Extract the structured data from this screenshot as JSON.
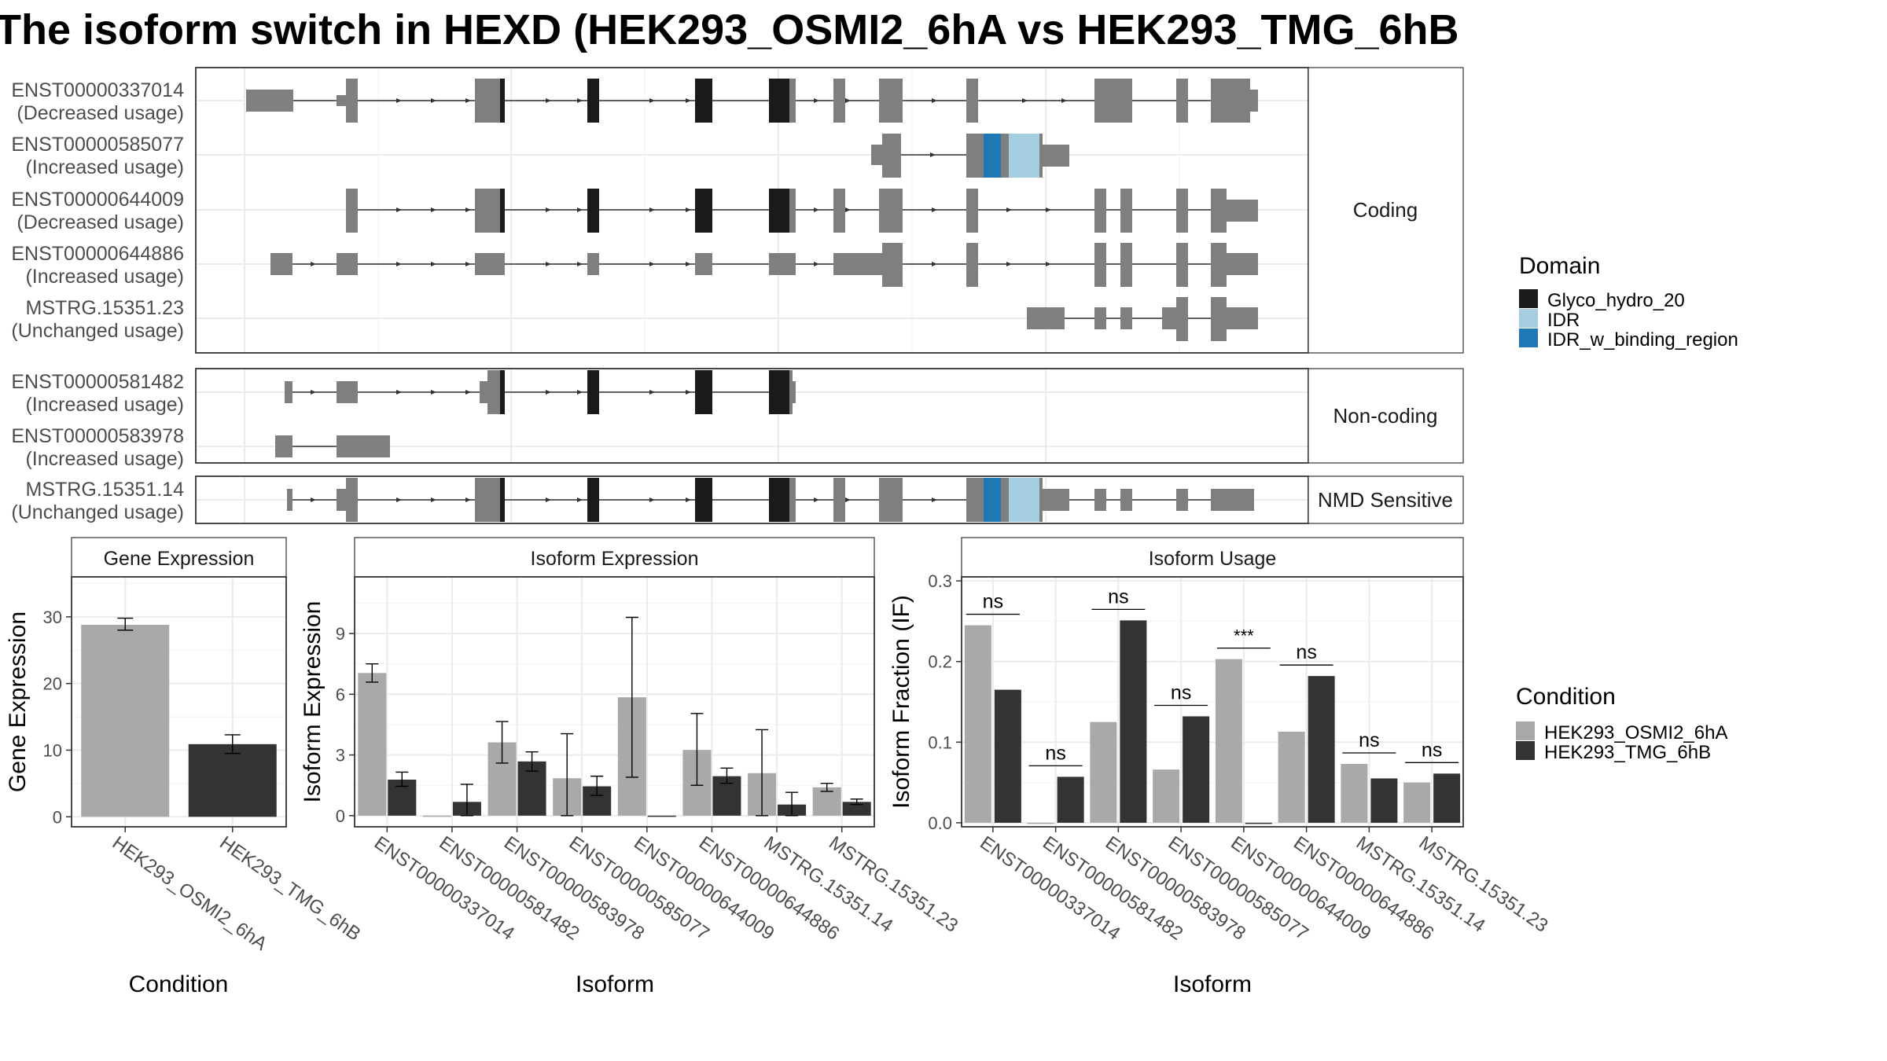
{
  "title": "The isoform switch in HEXD (HEK293_OSMI2_6hA vs HEK293_TMG_6hB",
  "colors": {
    "exon": "#7f7f7f",
    "condition_a": "#a9a9a9",
    "condition_b": "#333333",
    "strip_text": "#1a1a1a",
    "panel_border": "#333333",
    "grid_major": "#ebebeb",
    "grid_minor": "#f5f5f5"
  },
  "transcript_panels": [
    {
      "label": "Coding",
      "rows": [
        {
          "id": "ENST00000337014",
          "usage": "(Decreased usage)"
        },
        {
          "id": "ENST00000585077",
          "usage": "(Increased usage)"
        },
        {
          "id": "ENST00000644009",
          "usage": "(Decreased usage)"
        },
        {
          "id": "ENST00000644886",
          "usage": "(Increased usage)"
        },
        {
          "id": "MSTRG.15351.23",
          "usage": "(Unchanged usage)"
        }
      ]
    },
    {
      "label": "Non-coding",
      "rows": [
        {
          "id": "ENST00000581482",
          "usage": "(Increased usage)"
        },
        {
          "id": "ENST00000583978",
          "usage": "(Increased usage)"
        }
      ]
    },
    {
      "label": "NMD Sensitive",
      "rows": [
        {
          "id": "MSTRG.15351.14",
          "usage": "(Unchanged usage)"
        }
      ]
    }
  ],
  "domain_legend": {
    "title": "Domain",
    "items": [
      {
        "name": "Glyco_hydro_20",
        "color": "#1a1a1a"
      },
      {
        "name": "IDR",
        "color": "#a6cee3"
      },
      {
        "name": "IDR_w_binding_region",
        "color": "#1f78b4"
      }
    ]
  },
  "condition_legend": {
    "title": "Condition",
    "items": [
      {
        "name": "HEK293_OSMI2_6hA",
        "color": "#a9a9a9"
      },
      {
        "name": "HEK293_TMG_6hB",
        "color": "#333333"
      }
    ]
  },
  "chart_data": [
    {
      "type": "bar",
      "panel": "gene_expression",
      "strip": "Gene Expression",
      "xlabel": "Condition",
      "ylabel": "Gene Expression",
      "categories": [
        "HEK293_OSMI2_6hA",
        "HEK293_TMG_6hB"
      ],
      "values": [
        28.8,
        10.9
      ],
      "error": [
        [
          28.0,
          29.8
        ],
        [
          9.5,
          12.3
        ]
      ],
      "ylim": [
        -1.5,
        36
      ],
      "yticks": [
        0,
        10,
        20,
        30
      ]
    },
    {
      "type": "bar",
      "panel": "isoform_expression",
      "strip": "Isoform Expression",
      "xlabel": "Isoform",
      "ylabel": "Isoform Expression",
      "categories": [
        "ENST00000337014",
        "ENST00000581482",
        "ENST00000583978",
        "ENST00000585077",
        "ENST00000644009",
        "ENST00000644886",
        "MSTRG.15351.14",
        "MSTRG.15351.23"
      ],
      "series": [
        {
          "name": "HEK293_OSMI2_6hA",
          "values": [
            7.05,
            0.0,
            3.62,
            1.85,
            5.85,
            3.25,
            2.1,
            1.4
          ],
          "error": [
            [
              6.6,
              7.5
            ],
            [
              0,
              0
            ],
            [
              2.6,
              4.65
            ],
            [
              0,
              4.05
            ],
            [
              1.9,
              9.8
            ],
            [
              1.5,
              5.05
            ],
            [
              0,
              4.25
            ],
            [
              1.2,
              1.6
            ]
          ]
        },
        {
          "name": "HEK293_TMG_6hB",
          "values": [
            1.78,
            0.68,
            2.68,
            1.45,
            0.0,
            1.95,
            0.55,
            0.68
          ],
          "error": [
            [
              1.45,
              2.15
            ],
            [
              0,
              1.55
            ],
            [
              2.2,
              3.15
            ],
            [
              1.0,
              1.95
            ],
            [
              0,
              0
            ],
            [
              1.6,
              2.35
            ],
            [
              0,
              1.15
            ],
            [
              0.55,
              0.82
            ]
          ]
        }
      ],
      "ylim": [
        -0.55,
        11.8
      ],
      "yticks": [
        0,
        3,
        6,
        9
      ]
    },
    {
      "type": "bar",
      "panel": "isoform_usage",
      "strip": "Isoform Usage",
      "xlabel": "Isoform",
      "ylabel": "Isoform Fraction (IF)",
      "categories": [
        "ENST00000337014",
        "ENST00000581482",
        "ENST00000583978",
        "ENST00000585077",
        "ENST00000644009",
        "ENST00000644886",
        "MSTRG.15351.14",
        "MSTRG.15351.23"
      ],
      "series": [
        {
          "name": "HEK293_OSMI2_6hA",
          "values": [
            0.245,
            0.0,
            0.125,
            0.066,
            0.203,
            0.113,
            0.073,
            0.05
          ]
        },
        {
          "name": "HEK293_TMG_6hB",
          "values": [
            0.165,
            0.057,
            0.251,
            0.132,
            0.0,
            0.182,
            0.055,
            0.061
          ]
        }
      ],
      "significance": [
        "ns",
        "ns",
        "ns",
        "ns",
        "***",
        "ns",
        "ns",
        "ns"
      ],
      "ylim": [
        -0.005,
        0.305
      ],
      "yticks": [
        0.0,
        0.1,
        0.2,
        0.3
      ],
      "yticklabels": [
        "0.0",
        "0.1",
        "0.2",
        "0.3"
      ]
    }
  ]
}
